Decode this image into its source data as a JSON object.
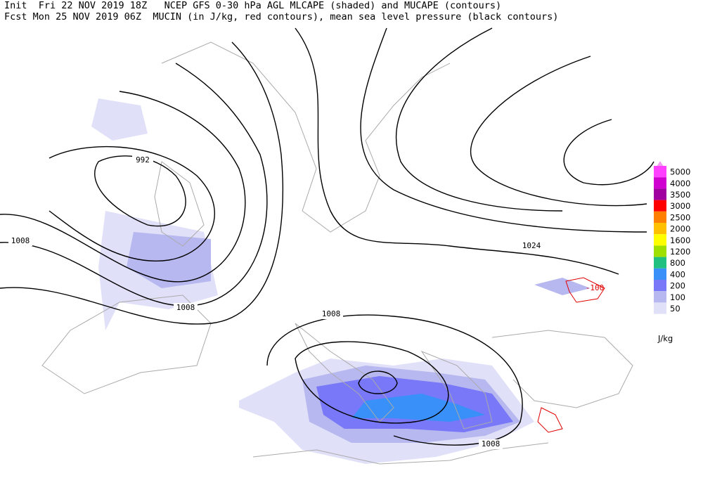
{
  "header": {
    "line1": "Init  Fri 22 NOV 2019 18Z   NCEP GFS 0-30 hPa AGL MLCAPE (shaded) and MUCAPE (contours)",
    "line2": "Fcst Mon 25 NOV 2019 06Z  MUCIN (in J/kg, red contours), mean sea level pressure (black contours)"
  },
  "contour_labels": [
    "992",
    "1008",
    "1008",
    "1008",
    "1008",
    "1024",
    "-100"
  ],
  "legend": {
    "unit": "J/kg",
    "items": [
      {
        "value": 5000,
        "color": "#ff40ff"
      },
      {
        "value": 4000,
        "color": "#d000d0"
      },
      {
        "value": 3500,
        "color": "#a000a0"
      },
      {
        "value": 3000,
        "color": "#ff0000"
      },
      {
        "value": 2500,
        "color": "#ff8000"
      },
      {
        "value": 2000,
        "color": "#ffc000"
      },
      {
        "value": 1600,
        "color": "#ffff00"
      },
      {
        "value": 1200,
        "color": "#a0e000"
      },
      {
        "value": 800,
        "color": "#20c080"
      },
      {
        "value": 400,
        "color": "#3890f8"
      },
      {
        "value": 200,
        "color": "#7878f8"
      },
      {
        "value": 100,
        "color": "#b8b8f0"
      },
      {
        "value": 50,
        "color": "#e0e0f8"
      }
    ]
  }
}
